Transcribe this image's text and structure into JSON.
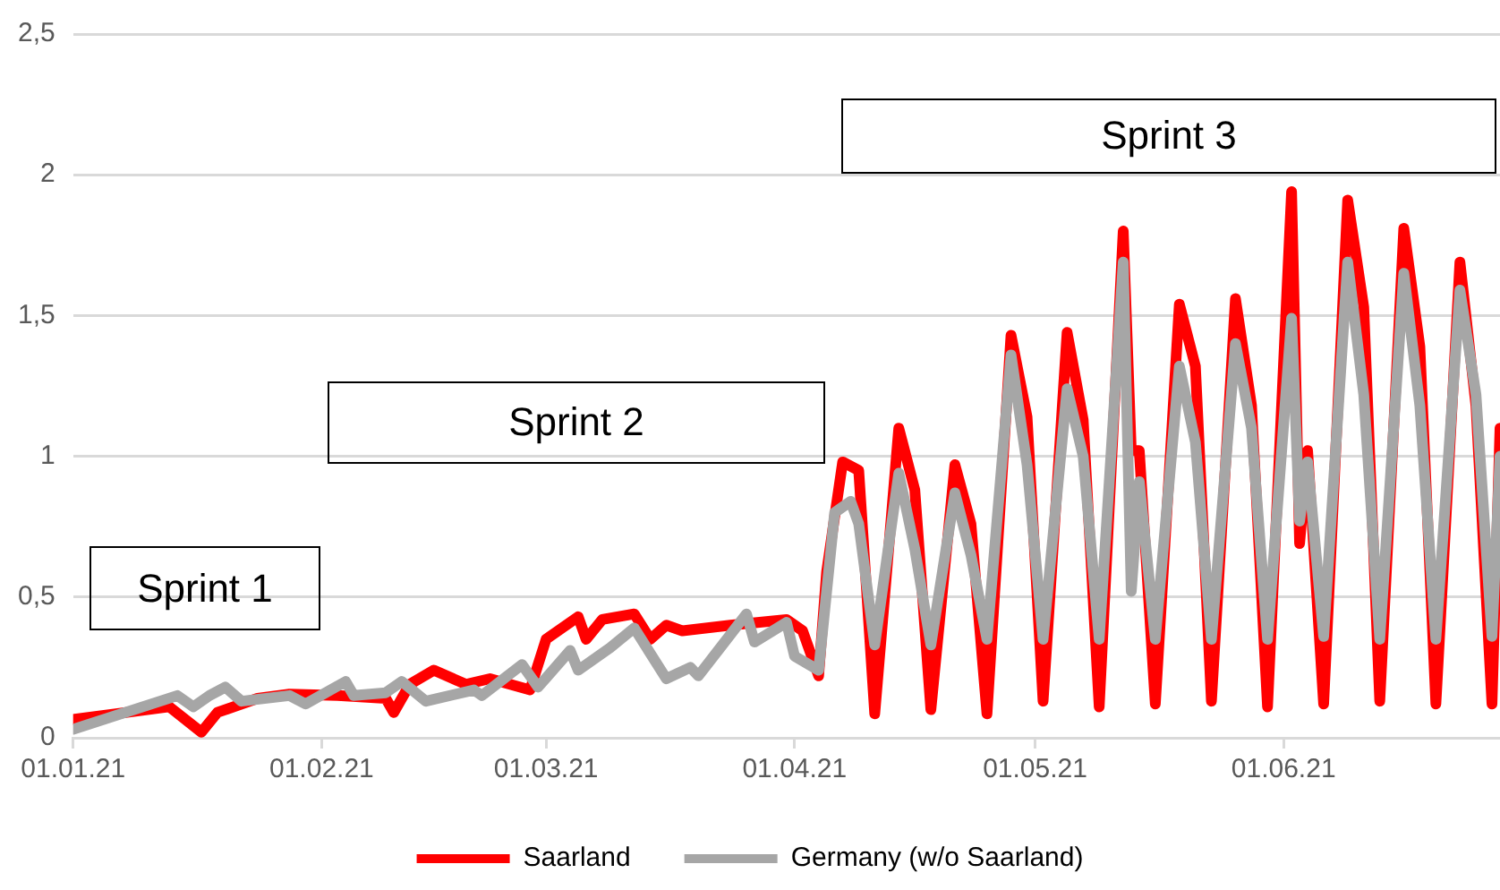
{
  "chart_data": {
    "type": "line",
    "xlim": [
      "2021-01-01",
      "2021-06-28"
    ],
    "xticks": [
      {
        "value": "2021-01-01",
        "label": "01.01.21"
      },
      {
        "value": "2021-02-01",
        "label": "01.02.21"
      },
      {
        "value": "2021-03-01",
        "label": "01.03.21"
      },
      {
        "value": "2021-04-01",
        "label": "01.04.21"
      },
      {
        "value": "2021-05-01",
        "label": "01.05.21"
      },
      {
        "value": "2021-06-01",
        "label": "01.06.21"
      }
    ],
    "ylim": [
      0,
      2.5
    ],
    "yticks": [
      0,
      {
        "value": 0.5,
        "label": "0,5"
      },
      1,
      {
        "value": 1.5,
        "label": "1,5"
      },
      2,
      {
        "value": 2.5,
        "label": "2,5"
      }
    ],
    "grid": "y",
    "legend": "bottom",
    "marker": "none",
    "line_style": "solid",
    "annotations": [
      "Sprint 1",
      "Sprint 2",
      "Sprint 3"
    ],
    "series": [
      {
        "name": "Saarland",
        "color": "#ff0000",
        "x": [
          "2021-01-01",
          "2021-01-13",
          "2021-01-17",
          "2021-01-19",
          "2021-01-24",
          "2021-01-28",
          "2021-02-03",
          "2021-02-09",
          "2021-02-10",
          "2021-02-12",
          "2021-02-15",
          "2021-02-19",
          "2021-02-22",
          "2021-02-27",
          "2021-03-01",
          "2021-03-05",
          "2021-03-06",
          "2021-03-08",
          "2021-03-12",
          "2021-03-14",
          "2021-03-16",
          "2021-03-18",
          "2021-03-24",
          "2021-03-31",
          "2021-04-02",
          "2021-04-04",
          "2021-04-05",
          "2021-04-07",
          "2021-04-09",
          "2021-04-11",
          "2021-04-14",
          "2021-04-16",
          "2021-04-18",
          "2021-04-21",
          "2021-04-23",
          "2021-04-25",
          "2021-04-28",
          "2021-04-30",
          "2021-05-02",
          "2021-05-05",
          "2021-05-07",
          "2021-05-09",
          "2021-05-12",
          "2021-05-13",
          "2021-05-14",
          "2021-05-16",
          "2021-05-19",
          "2021-05-21",
          "2021-05-23",
          "2021-05-26",
          "2021-05-28",
          "2021-05-30",
          "2021-06-02",
          "2021-06-03",
          "2021-06-04",
          "2021-06-06",
          "2021-06-09",
          "2021-06-11",
          "2021-06-13",
          "2021-06-16",
          "2021-06-18",
          "2021-06-20",
          "2021-06-23",
          "2021-06-25",
          "2021-06-27",
          "2021-06-28"
        ],
        "values": [
          0.065,
          0.11,
          0.02,
          0.09,
          0.14,
          0.155,
          0.15,
          0.14,
          0.09,
          0.19,
          0.24,
          0.19,
          0.21,
          0.17,
          0.35,
          0.43,
          0.35,
          0.42,
          0.44,
          0.35,
          0.4,
          0.38,
          0.4,
          0.42,
          0.38,
          0.22,
          0.59,
          0.98,
          0.95,
          0.085,
          1.1,
          0.88,
          0.1,
          0.97,
          0.76,
          0.085,
          1.43,
          1.14,
          0.13,
          1.44,
          1.13,
          0.11,
          1.8,
          1.02,
          1.02,
          0.12,
          1.54,
          1.32,
          0.13,
          1.56,
          1.18,
          0.11,
          1.94,
          0.69,
          1.02,
          0.12,
          1.91,
          1.53,
          0.13,
          1.81,
          1.39,
          0.12,
          1.69,
          1.18,
          0.12,
          1.1
        ]
      },
      {
        "name": "Germany (w/o Saarland)",
        "color": "#a6a6a6",
        "x": [
          "2021-01-01",
          "2021-01-14",
          "2021-01-16",
          "2021-01-18",
          "2021-01-20",
          "2021-01-22",
          "2021-01-28",
          "2021-01-30",
          "2021-02-04",
          "2021-02-05",
          "2021-02-09",
          "2021-02-11",
          "2021-02-14",
          "2021-02-20",
          "2021-02-21",
          "2021-02-26",
          "2021-02-28",
          "2021-03-04",
          "2021-03-05",
          "2021-03-09",
          "2021-03-12",
          "2021-03-14",
          "2021-03-16",
          "2021-03-19",
          "2021-03-20",
          "2021-03-23",
          "2021-03-26",
          "2021-03-27",
          "2021-03-31",
          "2021-04-01",
          "2021-04-04",
          "2021-04-06",
          "2021-04-08",
          "2021-04-09",
          "2021-04-11",
          "2021-04-14",
          "2021-04-16",
          "2021-04-18",
          "2021-04-21",
          "2021-04-23",
          "2021-04-25",
          "2021-04-28",
          "2021-04-30",
          "2021-05-02",
          "2021-05-05",
          "2021-05-07",
          "2021-05-09",
          "2021-05-12",
          "2021-05-13",
          "2021-05-14",
          "2021-05-16",
          "2021-05-19",
          "2021-05-21",
          "2021-05-23",
          "2021-05-26",
          "2021-05-28",
          "2021-05-30",
          "2021-06-02",
          "2021-06-03",
          "2021-06-04",
          "2021-06-06",
          "2021-06-09",
          "2021-06-11",
          "2021-06-13",
          "2021-06-16",
          "2021-06-18",
          "2021-06-20",
          "2021-06-23",
          "2021-06-25",
          "2021-06-27",
          "2021-06-28"
        ],
        "values": [
          0.03,
          0.15,
          0.11,
          0.15,
          0.18,
          0.13,
          0.15,
          0.12,
          0.2,
          0.15,
          0.16,
          0.2,
          0.13,
          0.17,
          0.15,
          0.26,
          0.18,
          0.31,
          0.24,
          0.32,
          0.39,
          0.3,
          0.21,
          0.25,
          0.22,
          0.33,
          0.44,
          0.34,
          0.41,
          0.29,
          0.24,
          0.8,
          0.84,
          0.76,
          0.33,
          0.94,
          0.67,
          0.33,
          0.87,
          0.65,
          0.35,
          1.36,
          0.97,
          0.35,
          1.24,
          1.0,
          0.35,
          1.69,
          0.52,
          0.91,
          0.35,
          1.32,
          1.05,
          0.35,
          1.4,
          1.1,
          0.35,
          1.49,
          0.77,
          0.98,
          0.36,
          1.69,
          1.22,
          0.35,
          1.65,
          1.18,
          0.35,
          1.59,
          1.22,
          0.36,
          1.0
        ]
      }
    ]
  }
}
